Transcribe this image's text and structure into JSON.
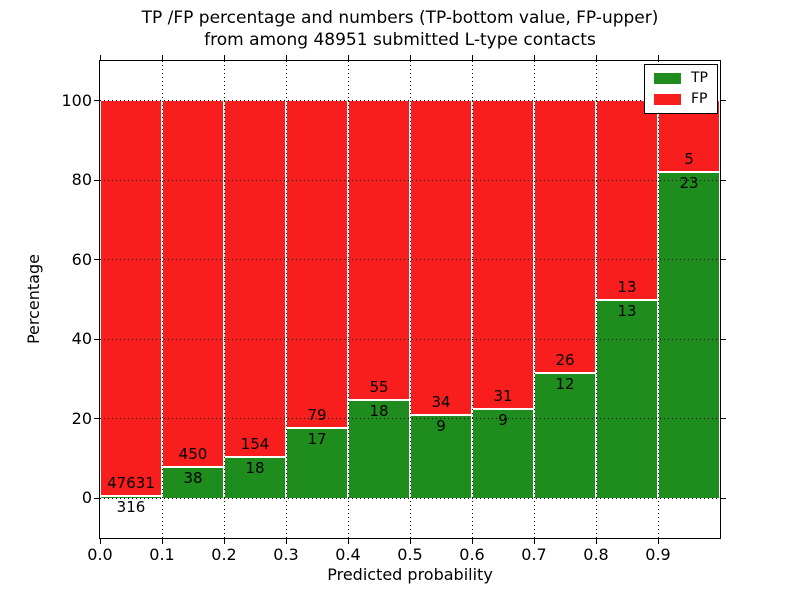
{
  "figure": {
    "title_line1": "TP /FP percentage and numbers (TP-bottom value, FP-upper)",
    "title_line2": "from among 48951 submitted L-type contacts"
  },
  "chart_data": {
    "type": "bar",
    "subtype": "stacked-percentage",
    "title": "TP /FP percentage and numbers (TP-bottom value, FP-upper) from among 48951 submitted L-type contacts",
    "xlabel": "Predicted probability",
    "ylabel": "Percentage",
    "xlim": [
      0.0,
      1.0
    ],
    "ylim": [
      -10,
      110
    ],
    "x_ticks": [
      "0.0",
      "0.1",
      "0.2",
      "0.3",
      "0.4",
      "0.5",
      "0.6",
      "0.7",
      "0.8",
      "0.9"
    ],
    "y_ticks": [
      0,
      20,
      40,
      60,
      80,
      100
    ],
    "grid": "dotted, drawn over bars",
    "bin_width": 0.1,
    "total_contacts": 48951,
    "categories": [
      "0.0-0.1",
      "0.1-0.2",
      "0.2-0.3",
      "0.3-0.4",
      "0.4-0.5",
      "0.5-0.6",
      "0.6-0.7",
      "0.7-0.8",
      "0.8-0.9",
      "0.9-1.0"
    ],
    "series": [
      {
        "name": "TP",
        "color": "#1f8c1e",
        "values": [
          316,
          38,
          18,
          17,
          18,
          9,
          9,
          12,
          13,
          23
        ]
      },
      {
        "name": "FP",
        "color": "#f81e1e",
        "values": [
          47631,
          450,
          154,
          79,
          55,
          34,
          31,
          26,
          13,
          5
        ]
      }
    ],
    "tp_percent_heights": [
      0.66,
      7.79,
      10.47,
      17.71,
      24.66,
      20.93,
      22.5,
      31.58,
      50.0,
      82.14
    ],
    "annotation_rule": "TP count printed below the TP/FP boundary, FP count printed above it",
    "legend": {
      "position": "upper right",
      "entries": [
        {
          "label": "TP",
          "color": "#1f8c1e"
        },
        {
          "label": "FP",
          "color": "#f81e1e"
        }
      ]
    }
  },
  "colors": {
    "tp": "#1f8c1e",
    "fp": "#f81e1e",
    "grid": "#000000",
    "spine": "#000000",
    "background": "#ffffff",
    "text": "#000000"
  }
}
